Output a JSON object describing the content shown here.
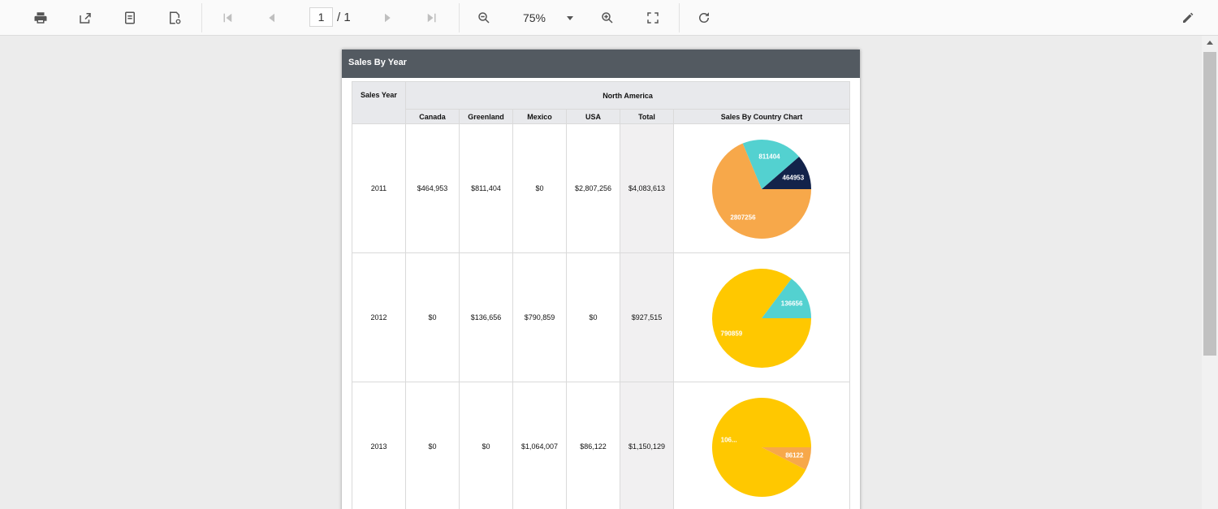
{
  "toolbar": {
    "current_page": "1",
    "total_pages": "/ 1",
    "zoom": "75%"
  },
  "report": {
    "title": "Sales By Year",
    "columns": {
      "sales_year": "Sales Year",
      "region": "North America",
      "canada": "Canada",
      "greenland": "Greenland",
      "mexico": "Mexico",
      "usa": "USA",
      "total": "Total",
      "chart": "Sales By Country Chart"
    },
    "rows": [
      {
        "year": "2011",
        "canada": "$464,953",
        "greenland": "$811,404",
        "mexico": "$0",
        "usa": "$2,807,256",
        "total": "$4,083,613"
      },
      {
        "year": "2012",
        "canada": "$0",
        "greenland": "$136,656",
        "mexico": "$790,859",
        "usa": "$0",
        "total": "$927,515"
      },
      {
        "year": "2013",
        "canada": "$0",
        "greenland": "$0",
        "mexico": "$1,064,007",
        "usa": "$86,122",
        "total": "$1,150,129"
      }
    ]
  },
  "chart_data": [
    {
      "type": "pie",
      "categories": [
        "Canada",
        "Greenland",
        "Mexico",
        "USA"
      ],
      "values": [
        464953,
        811404,
        0,
        2807256
      ],
      "labels": [
        "464953",
        "811404",
        "",
        "2807256"
      ],
      "colors": [
        "#13234a",
        "#53d1d0",
        "#ffc800",
        "#f7a84a"
      ]
    },
    {
      "type": "pie",
      "categories": [
        "Canada",
        "Greenland",
        "Mexico",
        "USA"
      ],
      "values": [
        0,
        136656,
        790859,
        0
      ],
      "labels": [
        "",
        "136656",
        "790859",
        ""
      ],
      "colors": [
        "#13234a",
        "#53d1d0",
        "#ffc800",
        "#f7a84a"
      ]
    },
    {
      "type": "pie",
      "categories": [
        "Canada",
        "Greenland",
        "Mexico",
        "USA"
      ],
      "values": [
        0,
        0,
        1064007,
        86122
      ],
      "labels": [
        "",
        "",
        "106...",
        "86122"
      ],
      "colors": [
        "#13234a",
        "#53d1d0",
        "#ffc800",
        "#f7a84a"
      ]
    }
  ]
}
